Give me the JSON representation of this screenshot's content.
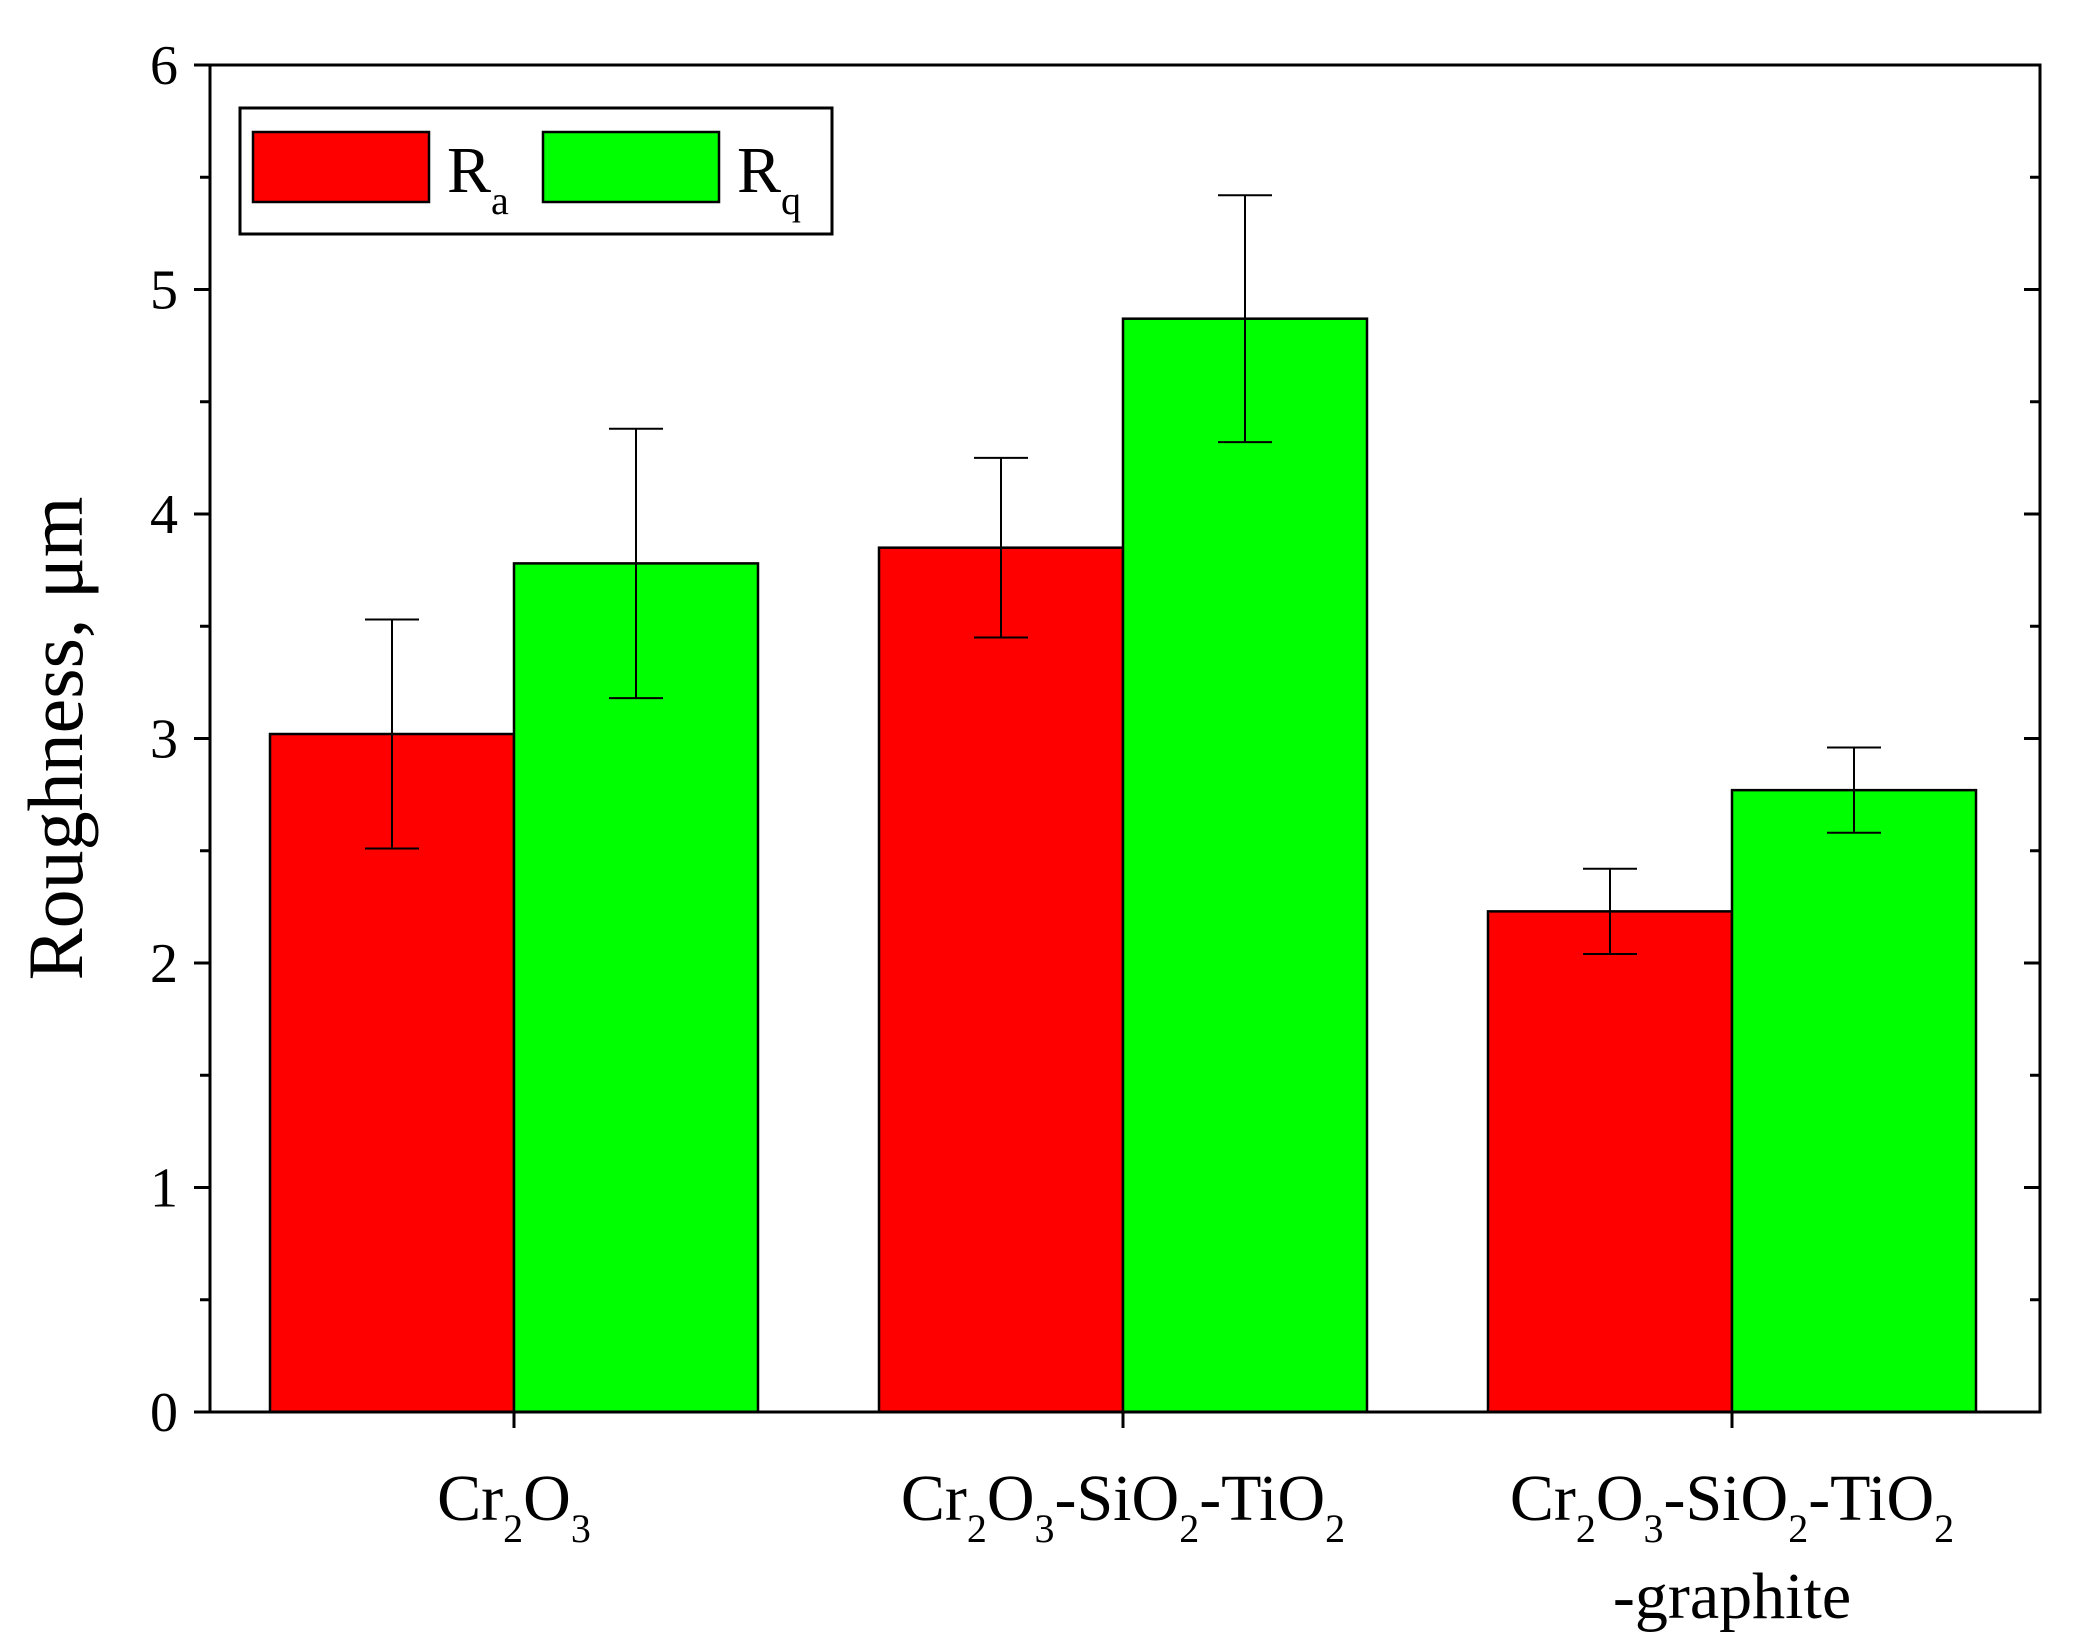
{
  "chart_data": {
    "type": "bar",
    "ylabel": "Roughness, μm",
    "ylim": [
      0,
      6
    ],
    "yticks": [
      "0",
      "1",
      "2",
      "3",
      "4",
      "5",
      "6"
    ],
    "categories": [
      {
        "lines": [
          [
            {
              "t": "Cr"
            },
            {
              "t": "2",
              "sub": true
            },
            {
              "t": "O"
            },
            {
              "t": "3",
              "sub": true
            }
          ]
        ]
      },
      {
        "lines": [
          [
            {
              "t": "Cr"
            },
            {
              "t": "2",
              "sub": true
            },
            {
              "t": "O"
            },
            {
              "t": "3",
              "sub": true
            },
            {
              "t": "-SiO"
            },
            {
              "t": "2",
              "sub": true
            },
            {
              "t": "-TiO"
            },
            {
              "t": "2",
              "sub": true
            }
          ]
        ]
      },
      {
        "lines": [
          [
            {
              "t": "Cr"
            },
            {
              "t": "2",
              "sub": true
            },
            {
              "t": "O"
            },
            {
              "t": "3",
              "sub": true
            },
            {
              "t": "-SiO"
            },
            {
              "t": "2",
              "sub": true
            },
            {
              "t": "-TiO"
            },
            {
              "t": "2",
              "sub": true
            }
          ],
          [
            {
              "t": "-graphite"
            }
          ]
        ]
      }
    ],
    "series": [
      {
        "name": "Ra",
        "legend": [
          {
            "t": "R"
          },
          {
            "t": "a",
            "sub": true
          }
        ],
        "color": "#ff0000",
        "values": [
          3.02,
          3.85,
          2.23
        ],
        "errors": [
          0.51,
          0.4,
          0.19
        ]
      },
      {
        "name": "Rq",
        "legend": [
          {
            "t": "R"
          },
          {
            "t": "q",
            "sub": true
          }
        ],
        "color": "#00ff00",
        "values": [
          3.78,
          4.87,
          2.77
        ],
        "errors": [
          0.6,
          0.55,
          0.19
        ]
      }
    ],
    "grid": false,
    "legend_position": "top-left"
  }
}
